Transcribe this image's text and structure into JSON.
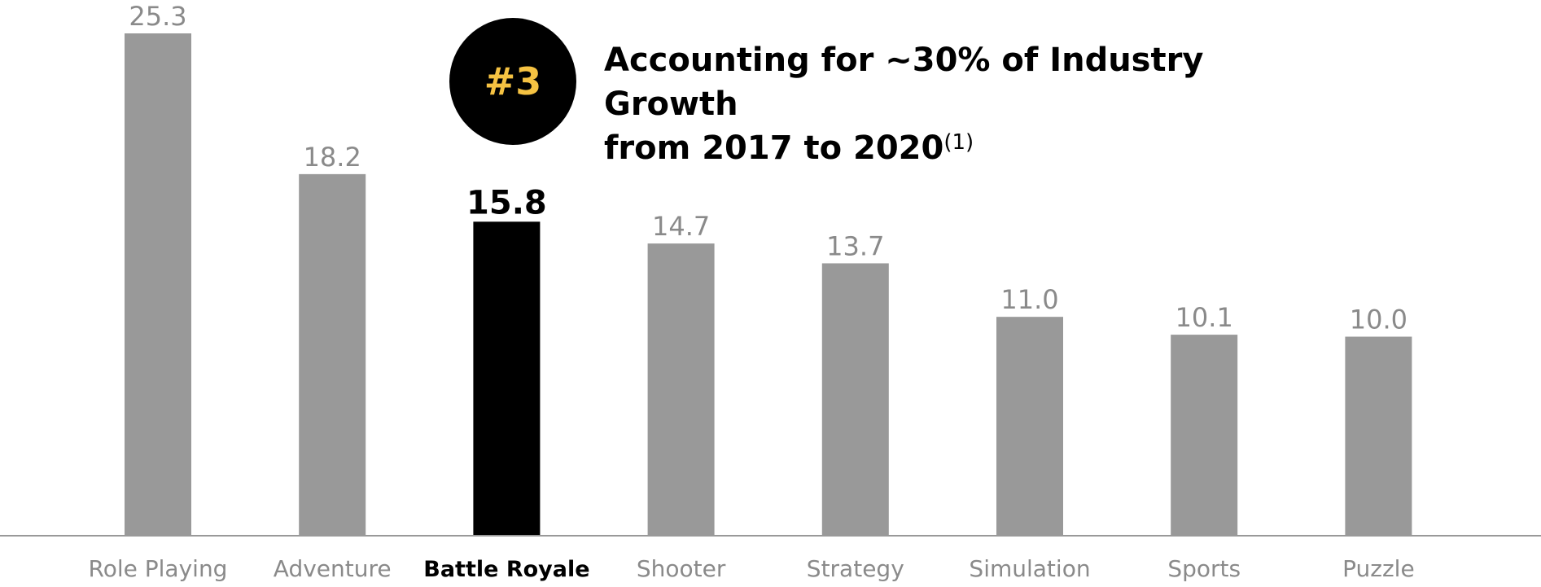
{
  "chart_data": {
    "type": "bar",
    "categories": [
      "Role Playing",
      "Adventure",
      "Battle Royale",
      "Shooter",
      "Strategy",
      "Simulation",
      "Sports",
      "Puzzle"
    ],
    "values": [
      25.3,
      18.2,
      15.8,
      14.7,
      13.7,
      11.0,
      10.1,
      10.0
    ],
    "value_labels": [
      "25.3",
      "18.2",
      "15.8",
      "14.7",
      "13.7",
      "11.0",
      "10.1",
      "10.0"
    ],
    "highlight_category": "Battle Royale",
    "ylim": [
      0,
      25.3
    ],
    "grid": false,
    "legend": "none",
    "colors": {
      "bar": "#999999",
      "highlight_bar": "#000000",
      "label": "#8a8a8a",
      "axis": "#999999"
    }
  },
  "callout": {
    "badge_text": "#3",
    "headline_line1": "Accounting for ~30% of Industry Growth",
    "headline_line2": "from 2017 to 2020",
    "footnote_marker": "(1)",
    "badge_color": "#000000",
    "badge_text_color": "#f5c242"
  }
}
